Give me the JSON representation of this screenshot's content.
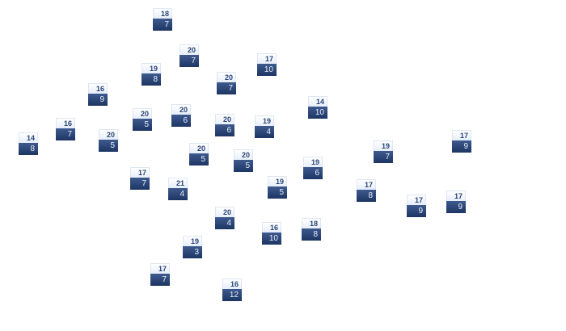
{
  "nodes": [
    {
      "top": "18",
      "bottom": "7"
    },
    {
      "top": "20",
      "bottom": "7"
    },
    {
      "top": "17",
      "bottom": "10"
    },
    {
      "top": "19",
      "bottom": "8"
    },
    {
      "top": "20",
      "bottom": "7"
    },
    {
      "top": "16",
      "bottom": "9"
    },
    {
      "top": "14",
      "bottom": "10"
    },
    {
      "top": "20",
      "bottom": "5"
    },
    {
      "top": "20",
      "bottom": "6"
    },
    {
      "top": "20",
      "bottom": "6"
    },
    {
      "top": "19",
      "bottom": "4"
    },
    {
      "top": "16",
      "bottom": "7"
    },
    {
      "top": "20",
      "bottom": "5"
    },
    {
      "top": "14",
      "bottom": "8"
    },
    {
      "top": "17",
      "bottom": "9"
    },
    {
      "top": "19",
      "bottom": "7"
    },
    {
      "top": "20",
      "bottom": "5"
    },
    {
      "top": "20",
      "bottom": "5"
    },
    {
      "top": "19",
      "bottom": "6"
    },
    {
      "top": "17",
      "bottom": "7"
    },
    {
      "top": "21",
      "bottom": "4"
    },
    {
      "top": "19",
      "bottom": "5"
    },
    {
      "top": "17",
      "bottom": "8"
    },
    {
      "top": "17",
      "bottom": "9"
    },
    {
      "top": "17",
      "bottom": "9"
    },
    {
      "top": "20",
      "bottom": "4"
    },
    {
      "top": "16",
      "bottom": "10"
    },
    {
      "top": "18",
      "bottom": "8"
    },
    {
      "top": "19",
      "bottom": "3"
    },
    {
      "top": "17",
      "bottom": "7"
    },
    {
      "top": "16",
      "bottom": "12"
    }
  ],
  "colors": {
    "top_text": "#2c4678",
    "bottom_fill": "#1c3563",
    "top_fill": "#e6eefa"
  }
}
